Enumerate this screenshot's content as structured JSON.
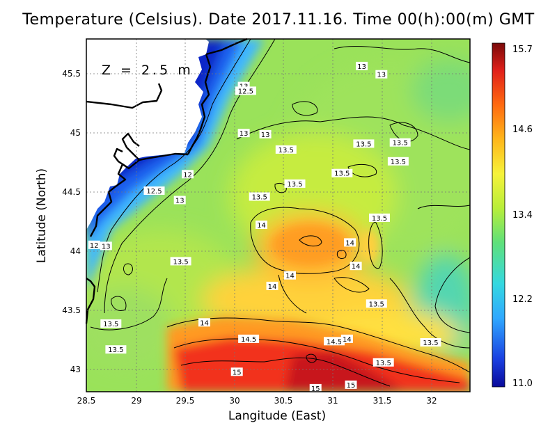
{
  "title": "Temperature (Celsius). Date 2017.11.16. Time 00(h):00(m) GMT",
  "depth_label": "Z = 2.5 m",
  "chart_data": {
    "type": "heatmap",
    "title": "Temperature (Celsius). Date 2017.11.16. Time 00(h):00(m) GMT",
    "xlabel": "Langitude (East)",
    "ylabel": "Latitude (North)",
    "xlim": [
      28.5,
      32.4
    ],
    "ylim": [
      42.8,
      45.8
    ],
    "x_ticks": [
      "28.5",
      "29",
      "29.5",
      "30",
      "30.5",
      "31",
      "31.5",
      "32"
    ],
    "y_ticks": [
      "43",
      "43.5",
      "44",
      "44.5",
      "45",
      "45.5"
    ],
    "grid": "dotted",
    "colorbar": {
      "ticks": [
        "11.0",
        "12.2",
        "13.4",
        "14.6",
        "15.7"
      ],
      "min": 11.0,
      "max": 15.7,
      "colors": [
        "#0a0a9a",
        "#1a4fe0",
        "#2fa8ff",
        "#34d8e0",
        "#5fe07a",
        "#b8ee3a",
        "#f6f23a",
        "#ffb61a",
        "#ff6a10",
        "#e0201a",
        "#7a0a0a"
      ],
      "placement": "right"
    },
    "contour_labels": [
      {
        "text": "13",
        "lon": 31.3,
        "lat": 45.57
      },
      {
        "text": "13",
        "lon": 31.5,
        "lat": 45.5
      },
      {
        "text": "13",
        "lon": 30.1,
        "lat": 45.4
      },
      {
        "text": "12.5",
        "lon": 30.12,
        "lat": 45.36
      },
      {
        "text": "13",
        "lon": 30.1,
        "lat": 45.0
      },
      {
        "text": "13",
        "lon": 30.32,
        "lat": 44.99
      },
      {
        "text": "13.5",
        "lon": 31.32,
        "lat": 44.91
      },
      {
        "text": "13.5",
        "lon": 31.69,
        "lat": 44.92
      },
      {
        "text": "13.5",
        "lon": 30.53,
        "lat": 44.86
      },
      {
        "text": "13.5",
        "lon": 31.67,
        "lat": 44.76
      },
      {
        "text": "12",
        "lon": 29.53,
        "lat": 44.65
      },
      {
        "text": "13.5",
        "lon": 31.1,
        "lat": 44.66
      },
      {
        "text": "13.5",
        "lon": 30.62,
        "lat": 44.57
      },
      {
        "text": "12.5",
        "lon": 29.19,
        "lat": 44.51
      },
      {
        "text": "13",
        "lon": 29.45,
        "lat": 44.43
      },
      {
        "text": "13.5",
        "lon": 30.26,
        "lat": 44.46
      },
      {
        "text": "14",
        "lon": 30.28,
        "lat": 44.22
      },
      {
        "text": "13.5",
        "lon": 31.48,
        "lat": 44.28
      },
      {
        "text": "12",
        "lon": 28.58,
        "lat": 44.05
      },
      {
        "text": "13",
        "lon": 28.7,
        "lat": 44.04
      },
      {
        "text": "14",
        "lon": 31.18,
        "lat": 44.07
      },
      {
        "text": "13.5",
        "lon": 29.46,
        "lat": 43.91
      },
      {
        "text": "14",
        "lon": 31.24,
        "lat": 43.87
      },
      {
        "text": "14",
        "lon": 30.57,
        "lat": 43.79
      },
      {
        "text": "14",
        "lon": 30.39,
        "lat": 43.7
      },
      {
        "text": "13.5",
        "lon": 31.45,
        "lat": 43.55
      },
      {
        "text": "13.5",
        "lon": 28.75,
        "lat": 43.38
      },
      {
        "text": "14",
        "lon": 29.7,
        "lat": 43.39
      },
      {
        "text": "14.5",
        "lon": 30.15,
        "lat": 43.25
      },
      {
        "text": "14.5",
        "lon": 31.02,
        "lat": 43.23
      },
      {
        "text": "14",
        "lon": 31.15,
        "lat": 43.25
      },
      {
        "text": "13.5",
        "lon": 32.0,
        "lat": 43.22
      },
      {
        "text": "13.5",
        "lon": 28.8,
        "lat": 43.16
      },
      {
        "text": "13.5",
        "lon": 31.52,
        "lat": 43.05
      },
      {
        "text": "15",
        "lon": 30.03,
        "lat": 42.97
      },
      {
        "text": "15",
        "lon": 31.19,
        "lat": 42.86
      },
      {
        "text": "15",
        "lon": 30.83,
        "lat": 42.83
      }
    ]
  }
}
